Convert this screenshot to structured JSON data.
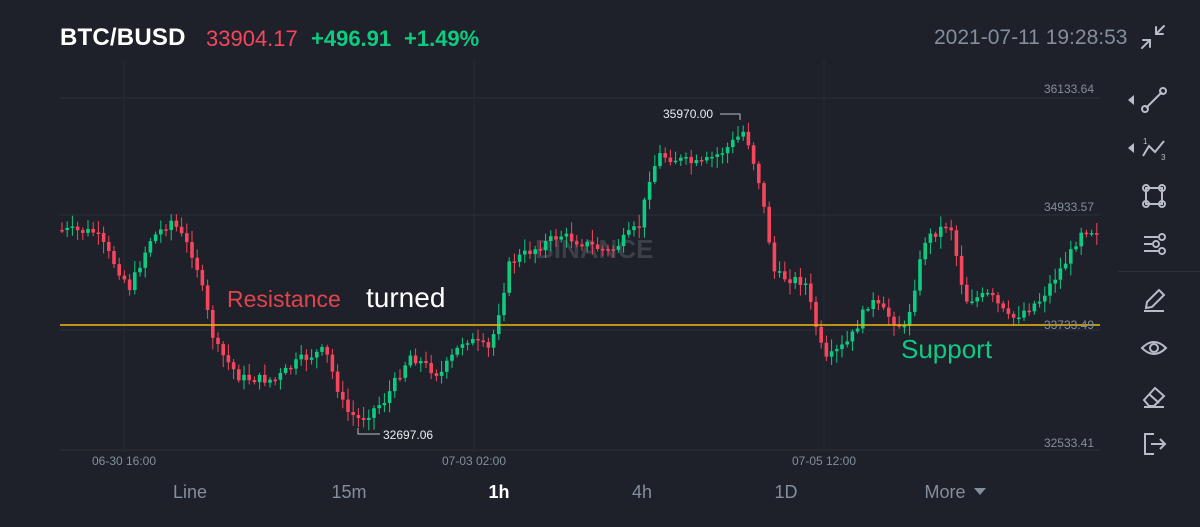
{
  "header": {
    "pair": "BTC/BUSD",
    "last_price": "33904.17",
    "change": "+496.91",
    "change_pct": "+1.49%",
    "datetime": "2021-07-11 19:28:53",
    "exit_fullscreen_icon": "collapse-arrows-icon"
  },
  "colors": {
    "background": "#1e2129",
    "up": "#0ecb81",
    "down": "#f6465d",
    "grid": "#2b3139",
    "axis_text": "#848e9c",
    "support_line": "#f0b90b"
  },
  "chart": {
    "price_labels": [
      "36133.64",
      "34933.57",
      "33733.49",
      "32533.41"
    ],
    "time_labels": [
      "06-30 16:00",
      "07-03 02:00",
      "07-05 12:00"
    ],
    "high_marker": "35970.00",
    "low_marker": "32697.06",
    "watermark": "BINANCE",
    "support_level": 33733.49,
    "price_range": [
      32533.41,
      36133.64
    ]
  },
  "annotations": {
    "resistance": "Resistance",
    "turned": "turned",
    "support": "Support"
  },
  "toolbar": {
    "items": [
      {
        "name": "trend-line-tool",
        "icon": "trend-line-icon"
      },
      {
        "name": "fibonacci-tool",
        "icon": "fib-wave-icon"
      },
      {
        "name": "shapes-tool",
        "icon": "square-nodes-icon"
      },
      {
        "name": "indicator-settings",
        "icon": "sliders-icon"
      },
      {
        "name": "pen-tool",
        "icon": "pencil-icon"
      },
      {
        "name": "visibility-toggle",
        "icon": "eye-icon"
      },
      {
        "name": "eraser-tool",
        "icon": "eraser-icon"
      },
      {
        "name": "exit-tool",
        "icon": "exit-icon"
      }
    ]
  },
  "tabs": [
    {
      "label": "Line",
      "active": false
    },
    {
      "label": "15m",
      "active": false
    },
    {
      "label": "1h",
      "active": true
    },
    {
      "label": "4h",
      "active": false
    },
    {
      "label": "1D",
      "active": false
    },
    {
      "label": "More",
      "active": false
    }
  ]
}
